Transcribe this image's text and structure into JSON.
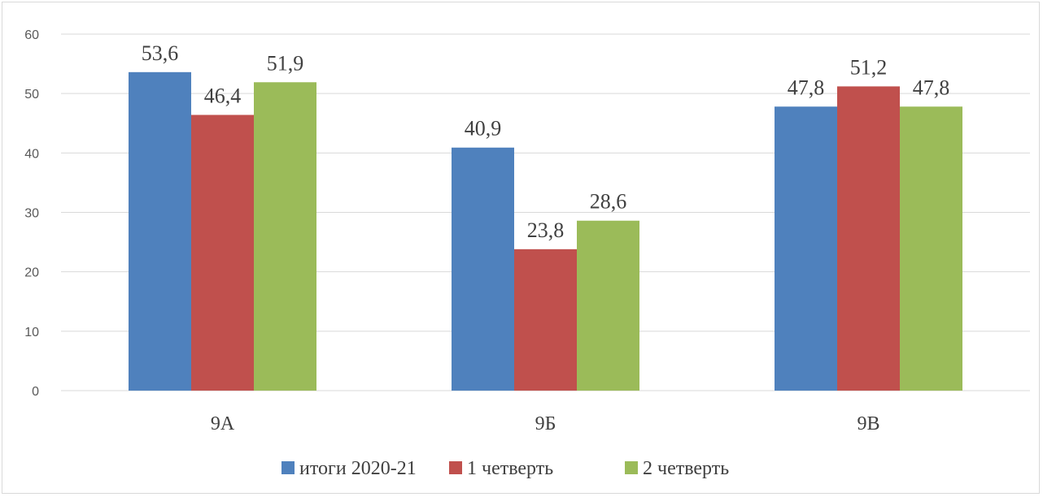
{
  "chart_data": {
    "type": "bar",
    "categories": [
      "9А",
      "9Б",
      "9В"
    ],
    "series": [
      {
        "name": "итоги 2020-21",
        "values": [
          53.6,
          40.9,
          47.8
        ],
        "labels": [
          "53,6",
          "40,9",
          "47,8"
        ],
        "color": "#4f81bd"
      },
      {
        "name": "1 четверть",
        "values": [
          46.4,
          23.8,
          51.2
        ],
        "labels": [
          "46,4",
          "23,8",
          "51,2"
        ],
        "color": "#c0504d"
      },
      {
        "name": "2 четверть",
        "values": [
          51.9,
          28.6,
          47.8
        ],
        "labels": [
          "51,9",
          "28,6",
          "47,8"
        ],
        "color": "#9bbb59"
      }
    ],
    "yticks": [
      "0",
      "10",
      "20",
      "30",
      "40",
      "50",
      "60"
    ],
    "ylim": [
      0,
      60
    ],
    "grid": true,
    "legend": "bottom"
  }
}
